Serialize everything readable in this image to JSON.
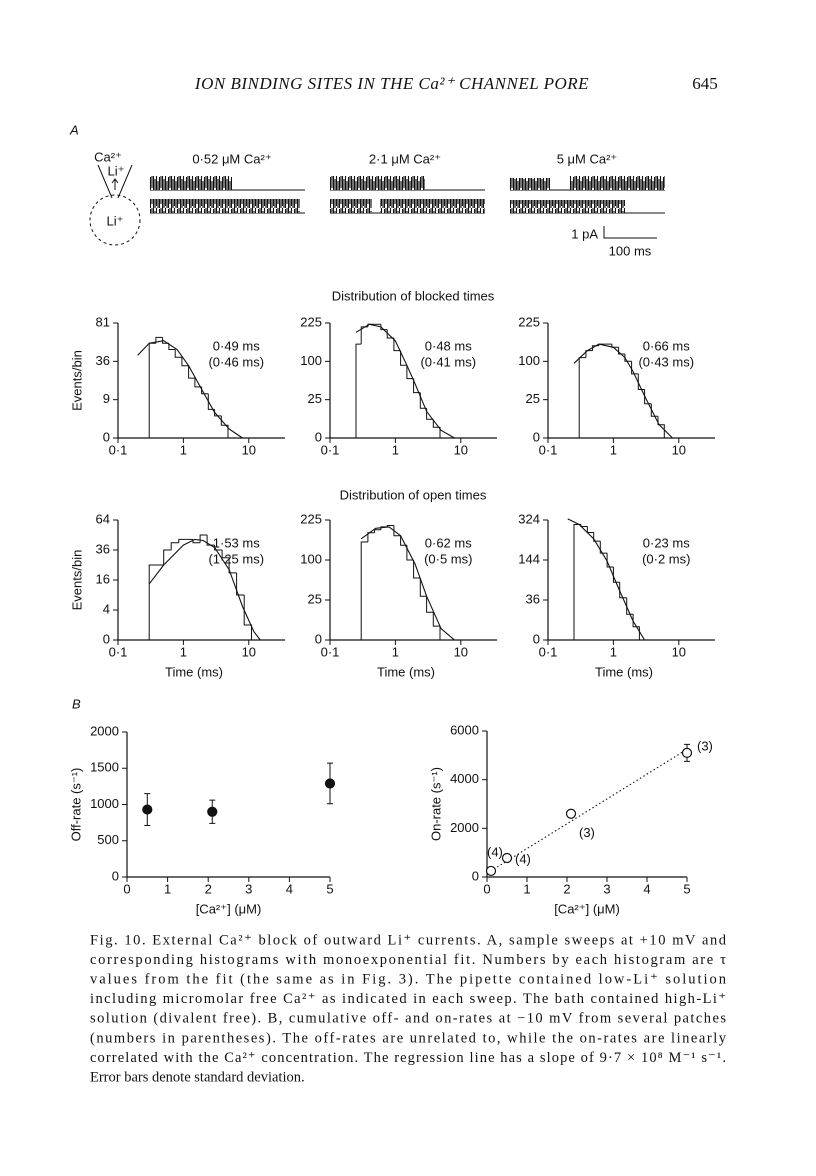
{
  "header": {
    "title": "ION BINDING SITES IN THE Ca²⁺ CHANNEL PORE",
    "page": "645"
  },
  "panel_a": {
    "label": "A",
    "diagram_labels": [
      "Ca²⁺",
      "Li⁺",
      "Li⁺"
    ],
    "sweeps": [
      "0·52 μM Ca²⁺",
      "2·1 μM Ca²⁺",
      "5 μM Ca²⁺"
    ],
    "scale_bar": {
      "y_label": "1 pA",
      "x_label": "100 ms"
    }
  },
  "row_titles": [
    "Distribution of blocked times",
    "Distribution of open times"
  ],
  "panel_b": {
    "label": "B"
  },
  "chart_data": [
    {
      "type": "histogram",
      "xscale": "log",
      "yscale": "sqrt",
      "xlim": [
        0.1,
        30
      ],
      "ylim": [
        0,
        81
      ],
      "xticks": [
        {
          "value": 0.1,
          "label": "0·1"
        },
        1,
        10
      ],
      "yticks": [
        0,
        9,
        36,
        81
      ],
      "ylabel": "Events/bin",
      "annotations": [
        "0·49 ms",
        "(0·46 ms)"
      ],
      "bins": [
        0.3,
        0.38,
        0.48,
        0.6,
        0.75,
        0.95,
        1.2,
        1.5,
        1.9,
        2.4,
        3,
        3.8,
        4.8
      ],
      "values": [
        55,
        62,
        55,
        48,
        40,
        32,
        22,
        16,
        12,
        5,
        3,
        1
      ],
      "fit": {
        "x": [
          0.2,
          0.3,
          0.5,
          0.8,
          1.2,
          2,
          3,
          5,
          8
        ],
        "values": [
          42,
          55,
          58,
          48,
          32,
          13,
          4,
          0.5,
          0
        ]
      }
    },
    {
      "type": "histogram",
      "xscale": "log",
      "yscale": "sqrt",
      "xlim": [
        0.1,
        30
      ],
      "ylim": [
        0,
        225
      ],
      "xticks": [
        {
          "value": 0.1,
          "label": "0·1"
        },
        1,
        10
      ],
      "yticks": [
        0,
        25,
        100,
        225
      ],
      "annotations": [
        "0·48 ms",
        "(0·41 ms)"
      ],
      "bins": [
        0.25,
        0.3,
        0.38,
        0.48,
        0.6,
        0.75,
        0.95,
        1.2,
        1.5,
        1.9,
        2.4,
        3,
        3.8,
        4.8
      ],
      "values": [
        150,
        210,
        220,
        220,
        200,
        170,
        130,
        90,
        60,
        35,
        15,
        6,
        2
      ],
      "fit": {
        "x": [
          0.25,
          0.4,
          0.6,
          1,
          1.5,
          2,
          3,
          5,
          8
        ],
        "values": [
          190,
          220,
          210,
          160,
          90,
          50,
          12,
          1,
          0
        ]
      }
    },
    {
      "type": "histogram",
      "xscale": "log",
      "yscale": "sqrt",
      "xlim": [
        0.1,
        30
      ],
      "ylim": [
        0,
        225
      ],
      "xticks": [
        {
          "value": 0.1,
          "label": "0·1"
        },
        1,
        10
      ],
      "yticks": [
        0,
        25,
        100,
        225
      ],
      "annotations": [
        "0·66 ms",
        "(0·43 ms)"
      ],
      "bins": [
        0.3,
        0.38,
        0.48,
        0.6,
        0.75,
        0.95,
        1.2,
        1.5,
        1.9,
        2.4,
        3,
        3.8,
        4.8,
        6
      ],
      "values": [
        110,
        130,
        145,
        150,
        150,
        140,
        120,
        100,
        70,
        40,
        20,
        8,
        3
      ],
      "fit": {
        "x": [
          0.25,
          0.4,
          0.6,
          1,
          1.5,
          2,
          3,
          5,
          8
        ],
        "values": [
          95,
          130,
          150,
          140,
          110,
          75,
          30,
          3,
          0
        ]
      }
    },
    {
      "type": "histogram",
      "xscale": "log",
      "yscale": "sqrt",
      "xlim": [
        0.1,
        30
      ],
      "ylim": [
        0,
        64
      ],
      "xticks": [
        {
          "value": 0.1,
          "label": "0·1"
        },
        1,
        10
      ],
      "yticks": [
        0,
        4,
        16,
        36,
        64
      ],
      "ylabel": "Events/bin",
      "xlabel": "Time (ms)",
      "annotations": [
        "1·53 ms",
        "(1·25 ms)"
      ],
      "bins": [
        0.3,
        0.4,
        0.5,
        0.65,
        0.85,
        1.1,
        1.4,
        1.8,
        2.3,
        3,
        3.9,
        5,
        6.5,
        8.5,
        11
      ],
      "values": [
        25,
        25,
        36,
        42,
        45,
        45,
        42,
        49,
        40,
        36,
        30,
        20,
        9,
        1
      ],
      "fit": {
        "x": [
          0.3,
          0.5,
          1,
          1.5,
          2,
          3,
          5,
          8,
          12,
          15
        ],
        "values": [
          14,
          25,
          40,
          45,
          44,
          38,
          22,
          5,
          0.3,
          0
        ]
      }
    },
    {
      "type": "histogram",
      "xscale": "log",
      "yscale": "sqrt",
      "xlim": [
        0.1,
        30
      ],
      "ylim": [
        0,
        225
      ],
      "xticks": [
        {
          "value": 0.1,
          "label": "0·1"
        },
        1,
        10
      ],
      "yticks": [
        0,
        25,
        100,
        225
      ],
      "xlabel": "Time (ms)",
      "annotations": [
        "0·62 ms",
        "(0·5 ms)"
      ],
      "bins": [
        0.3,
        0.38,
        0.48,
        0.6,
        0.75,
        0.95,
        1.2,
        1.5,
        1.9,
        2.4,
        3,
        3.8,
        4.8
      ],
      "values": [
        150,
        180,
        190,
        200,
        205,
        170,
        140,
        100,
        60,
        30,
        12,
        3
      ],
      "fit": {
        "x": [
          0.3,
          0.5,
          0.8,
          1.2,
          2,
          3,
          5,
          8
        ],
        "values": [
          160,
          195,
          200,
          170,
          90,
          30,
          2,
          0
        ]
      }
    },
    {
      "type": "histogram",
      "xscale": "log",
      "yscale": "sqrt",
      "xlim": [
        0.1,
        30
      ],
      "ylim": [
        0,
        324
      ],
      "xticks": [
        {
          "value": 0.1,
          "label": "0·1"
        },
        1,
        10
      ],
      "yticks": [
        0,
        36,
        144,
        324
      ],
      "xlabel": "Time (ms)",
      "annotations": [
        "0·23 ms",
        "(0·2 ms)"
      ],
      "bins": [
        0.25,
        0.32,
        0.4,
        0.5,
        0.63,
        0.8,
        1,
        1.25,
        1.6,
        2,
        2.5
      ],
      "values": [
        300,
        290,
        260,
        220,
        170,
        120,
        75,
        40,
        15,
        4
      ],
      "fit": {
        "x": [
          0.2,
          0.3,
          0.5,
          0.8,
          1.2,
          2,
          3
        ],
        "values": [
          330,
          300,
          230,
          140,
          60,
          8,
          0
        ]
      }
    },
    {
      "type": "scatter",
      "marker": "filled",
      "xlim": [
        0,
        5
      ],
      "ylim": [
        0,
        2000
      ],
      "xticks": [
        0,
        1,
        2,
        3,
        4,
        5
      ],
      "yticks": [
        0,
        500,
        1000,
        1500,
        2000
      ],
      "xlabel": "[Ca²⁺] (μM)",
      "ylabel": "Off-rate (s⁻¹)",
      "x": [
        0.5,
        2.1,
        5
      ],
      "values": [
        930,
        900,
        1290
      ],
      "errors": [
        220,
        160,
        280
      ]
    },
    {
      "type": "scatter",
      "marker": "open",
      "xlim": [
        0,
        5
      ],
      "ylim": [
        0,
        6000
      ],
      "xticks": [
        0,
        1,
        2,
        3,
        4,
        5
      ],
      "yticks": [
        0,
        2000,
        4000,
        6000
      ],
      "xlabel": "[Ca²⁺] (μM)",
      "ylabel": "On-rate (s⁻¹)",
      "x": [
        0.1,
        0.5,
        2.1,
        5
      ],
      "values": [
        250,
        780,
        2600,
        5100
      ],
      "errors": [
        0,
        0,
        150,
        350
      ],
      "point_labels": [
        "(4)",
        "(4)",
        "(3)",
        "(3)"
      ],
      "fit": {
        "x": [
          0,
          5
        ],
        "values": [
          150,
          5250
        ]
      },
      "line_style": "dotted"
    }
  ],
  "caption": {
    "lines": [
      "Fig. 10. External Ca²⁺ block of outward Li⁺ currents. A, sample sweeps at +10 mV and",
      "corresponding histograms with monoexponential fit. Numbers by each histogram are τ",
      "values from the fit (the same as in Fig. 3). The pipette contained low-Li⁺ solution",
      "including micromolar free Ca²⁺ as indicated in each sweep. The bath contained high-Li⁺",
      "solution (divalent free). B, cumulative off- and on-rates at −10 mV from several patches",
      "(numbers in parentheses). The off-rates are unrelated to, while the on-rates are linearly",
      "correlated with the Ca²⁺ concentration. The regression line has a slope of 9·7 × 10⁸ M⁻¹ s⁻¹.",
      "Error bars denote standard deviation."
    ]
  }
}
